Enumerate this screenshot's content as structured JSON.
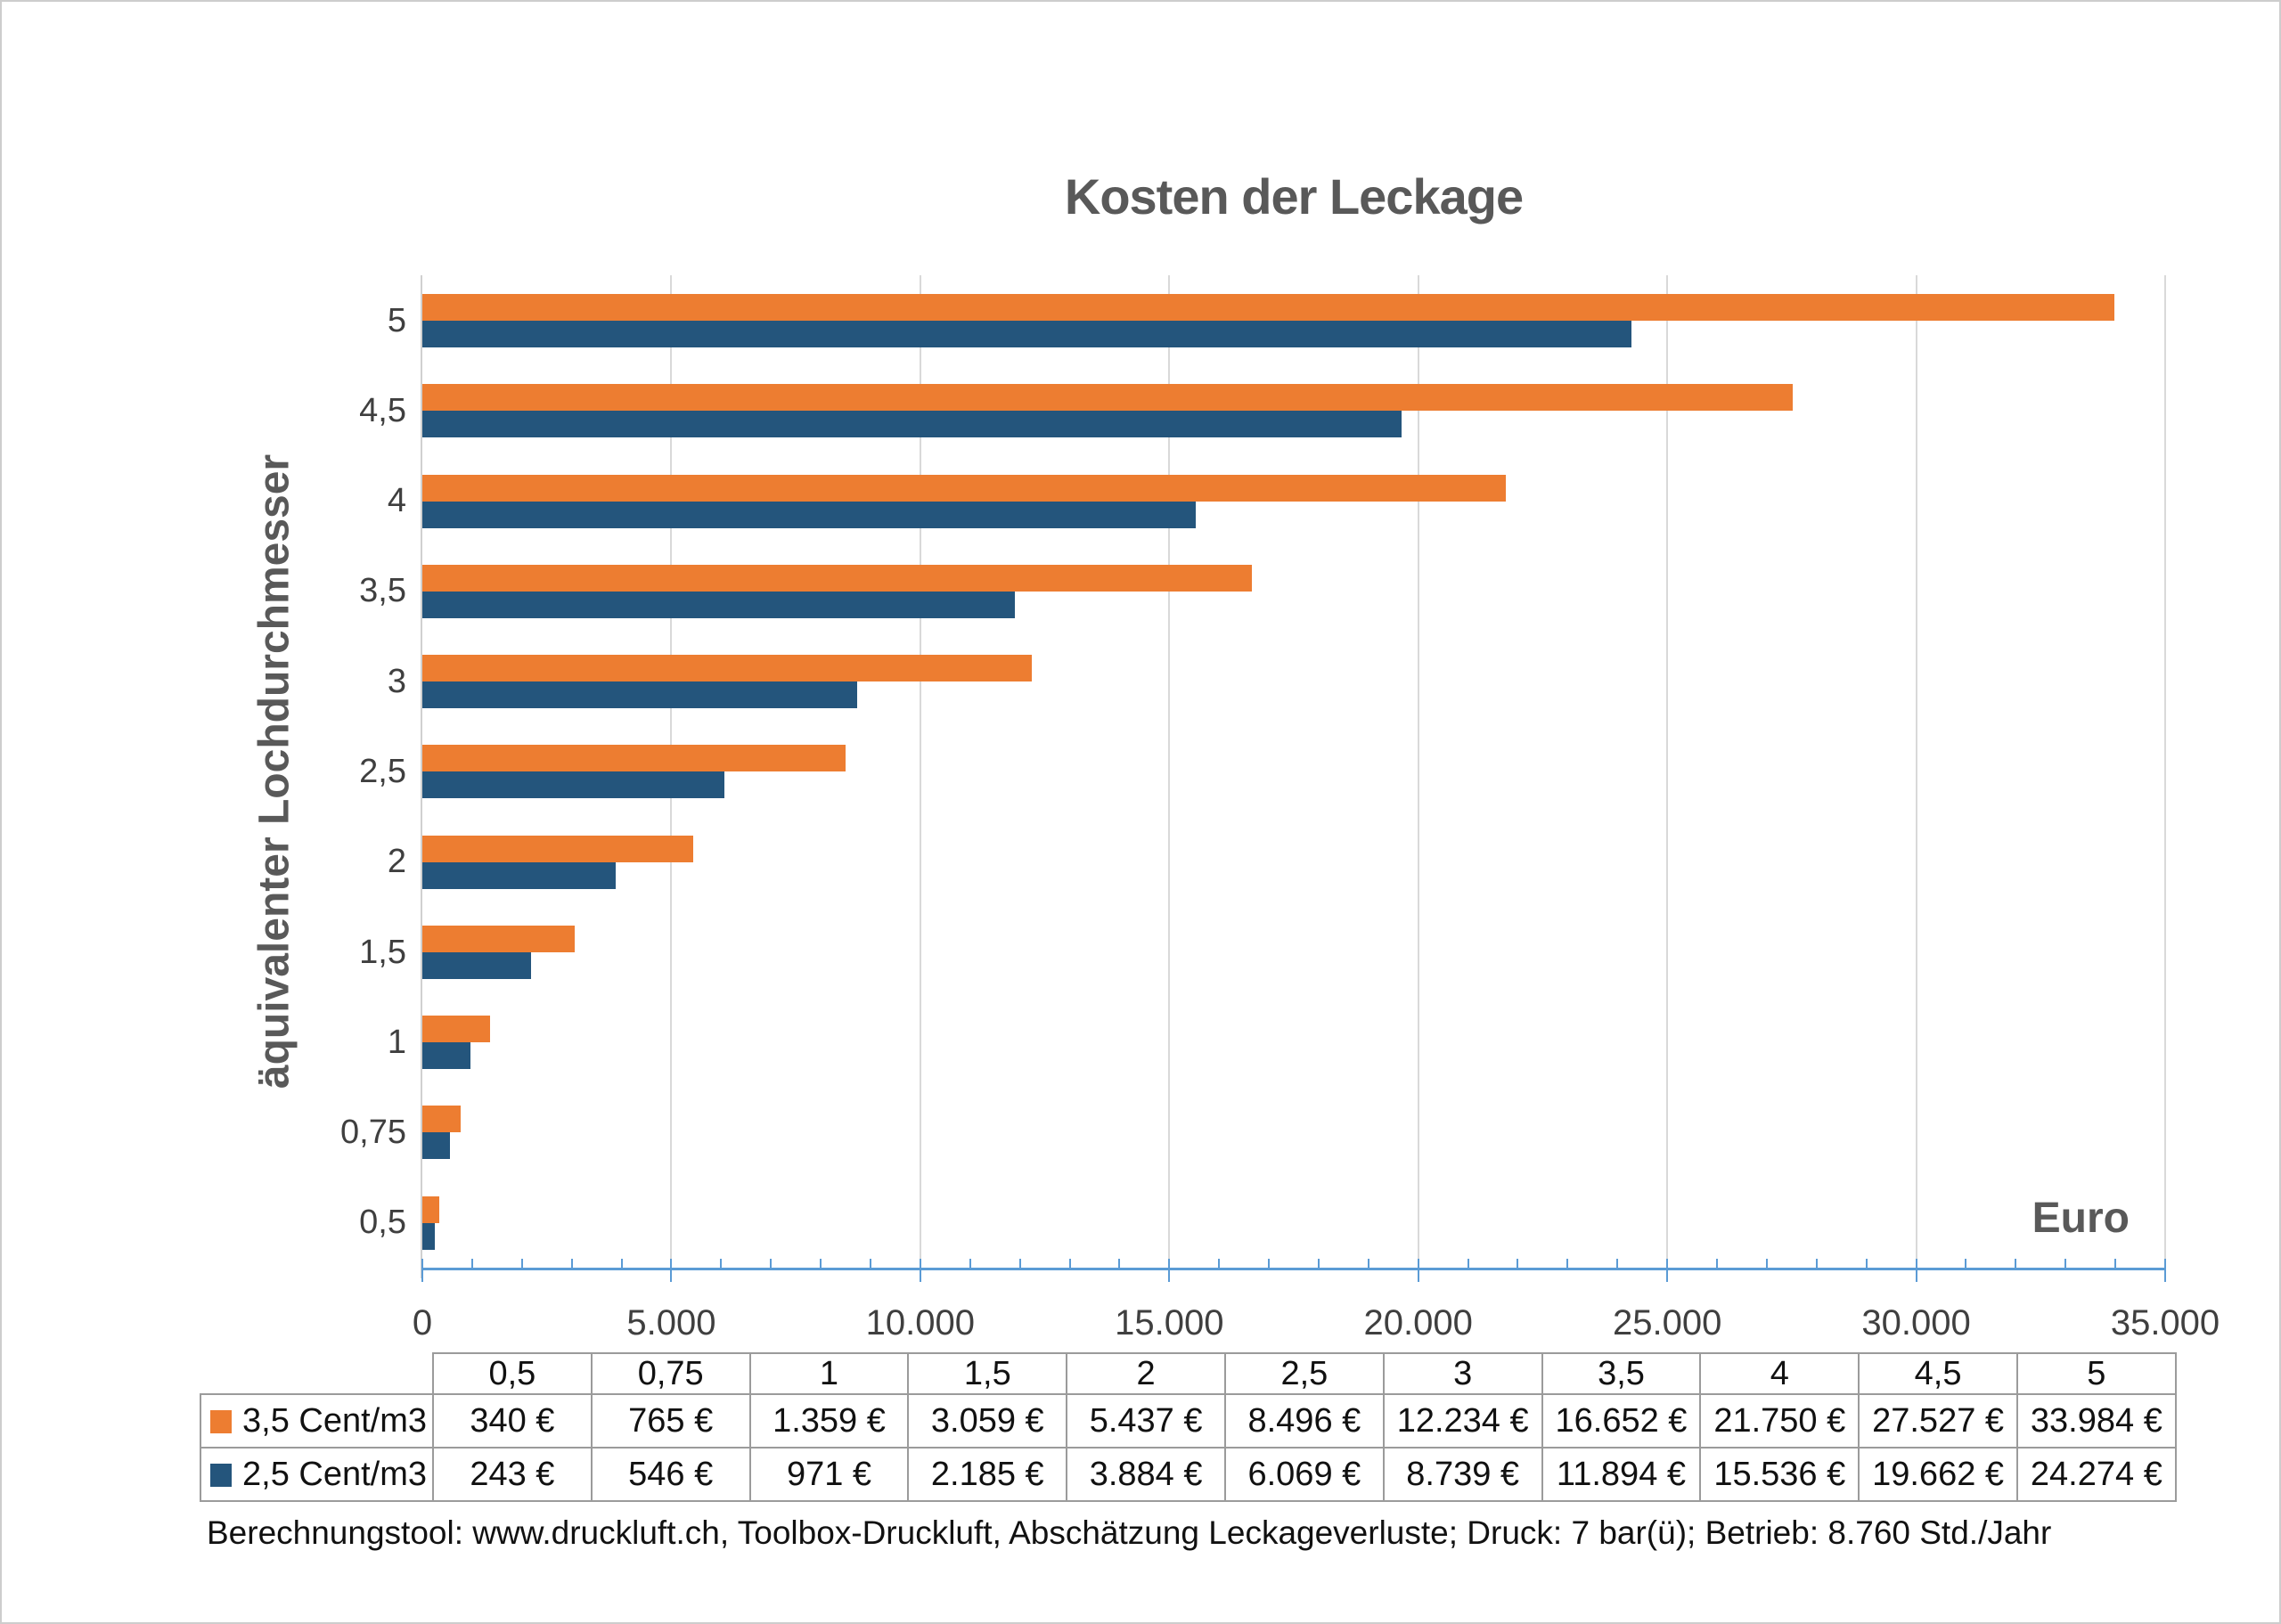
{
  "title": "Kosten der Leckage",
  "y_axis_title": "äquivalenter Lochdurchmesser",
  "x_axis_unit_label": "Euro",
  "footer": "Berechnungstool: www.druckluft.ch, Toolbox-Druckluft, Abschätzung Leckageverluste; Druck: 7 bar(ü); Betrieb: 8.760 Std./Jahr",
  "colors": {
    "series_orange": "#ed7d31",
    "series_blue": "#24557c",
    "axis_blue": "#5b9bd5",
    "gridline_gray": "#d9d9d9",
    "title_gray": "#595959",
    "tick_text": "#3f3f3f"
  },
  "chart_data": {
    "type": "bar",
    "orientation": "horizontal",
    "title": "Kosten der Leckage",
    "xlabel": "Euro",
    "ylabel": "äquivalenter Lochdurchmesser",
    "categories_top_to_bottom": [
      "5",
      "4,5",
      "4",
      "3,5",
      "3",
      "2,5",
      "2",
      "1,5",
      "1",
      "0,75",
      "0,5"
    ],
    "series": [
      {
        "name": "3,5 Cent/m3",
        "color": "#ed7d31",
        "values_top_to_bottom": [
          33984,
          27527,
          21750,
          16652,
          12234,
          8496,
          5437,
          3059,
          1359,
          765,
          340
        ]
      },
      {
        "name": "2,5 Cent/m3",
        "color": "#24557c",
        "values_top_to_bottom": [
          24274,
          19662,
          15536,
          11894,
          8739,
          6069,
          3884,
          2185,
          971,
          546,
          243
        ]
      }
    ],
    "xlim": [
      0,
      35000
    ],
    "x_tick_labels": [
      "0",
      "5.000",
      "10.000",
      "15.000",
      "20.000",
      "25.000",
      "30.000",
      "35.000"
    ],
    "x_major_tick_step": 5000,
    "x_minor_tick_step": 1000,
    "grid": "vertical major gridlines",
    "legend_position": "data table below chart"
  },
  "table": {
    "col_headers": [
      "0,5",
      "0,75",
      "1",
      "1,5",
      "2",
      "2,5",
      "3",
      "3,5",
      "4",
      "4,5",
      "5"
    ],
    "rows": [
      {
        "label": "3,5 Cent/m3",
        "swatch_color": "#ed7d31",
        "values": [
          "340 €",
          "765 €",
          "1.359 €",
          "3.059 €",
          "5.437 €",
          "8.496 €",
          "12.234 €",
          "16.652 €",
          "21.750 €",
          "27.527 €",
          "33.984 €"
        ]
      },
      {
        "label": "2,5 Cent/m3",
        "swatch_color": "#24557c",
        "values": [
          "243 €",
          "546 €",
          "971 €",
          "2.185 €",
          "3.884 €",
          "6.069 €",
          "8.739 €",
          "11.894 €",
          "15.536 €",
          "19.662 €",
          "24.274 €"
        ]
      }
    ]
  }
}
